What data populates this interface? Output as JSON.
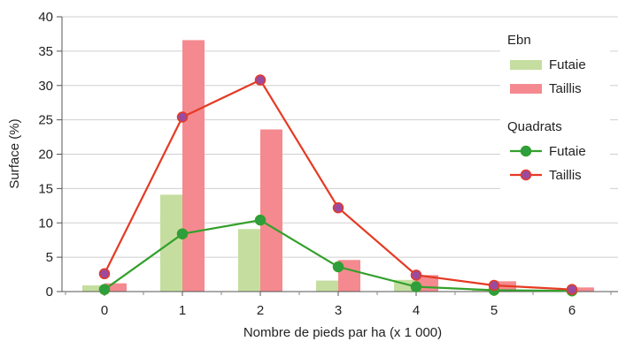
{
  "chart_data": {
    "type": "bar",
    "xlabel": "Nombre de pieds par ha (x 1 000)",
    "ylabel": "Surface (%)",
    "ylim": [
      0,
      40
    ],
    "yticks": [
      "0",
      "5",
      "10",
      "15",
      "20",
      "25",
      "30",
      "35",
      "40"
    ],
    "categories": [
      "0",
      "1",
      "2",
      "3",
      "4",
      "5",
      "6"
    ],
    "grid": "horizontal",
    "legend_position": "right",
    "legend_groups": [
      {
        "title": "Ebn",
        "entries": [
          "Futaie",
          "Taillis"
        ]
      },
      {
        "title": "Quadrats",
        "entries": [
          "Futaie",
          "Taillis"
        ]
      }
    ],
    "bar_series": [
      {
        "name": "Futaie",
        "group": "Ebn",
        "color": "#c5dea0",
        "values": [
          0.9,
          14.1,
          9.1,
          1.6,
          1.7,
          0.4,
          0.2
        ]
      },
      {
        "name": "Taillis",
        "group": "Ebn",
        "color": "#f48a8f",
        "values": [
          1.2,
          36.6,
          23.6,
          4.6,
          2.4,
          1.5,
          0.6
        ]
      }
    ],
    "line_series": [
      {
        "name": "Futaie",
        "group": "Quadrats",
        "line_color": "#33a02c",
        "marker_color": "#2e9e3e",
        "values": [
          0.3,
          8.4,
          10.4,
          3.6,
          0.7,
          0.2,
          0.1
        ]
      },
      {
        "name": "Taillis",
        "group": "Quadrats",
        "line_color": "#e53a24",
        "marker_color": "#9c4a9e",
        "marker_edge": "#e53a24",
        "values": [
          2.6,
          25.4,
          30.8,
          12.2,
          2.4,
          0.9,
          0.3
        ]
      }
    ]
  }
}
